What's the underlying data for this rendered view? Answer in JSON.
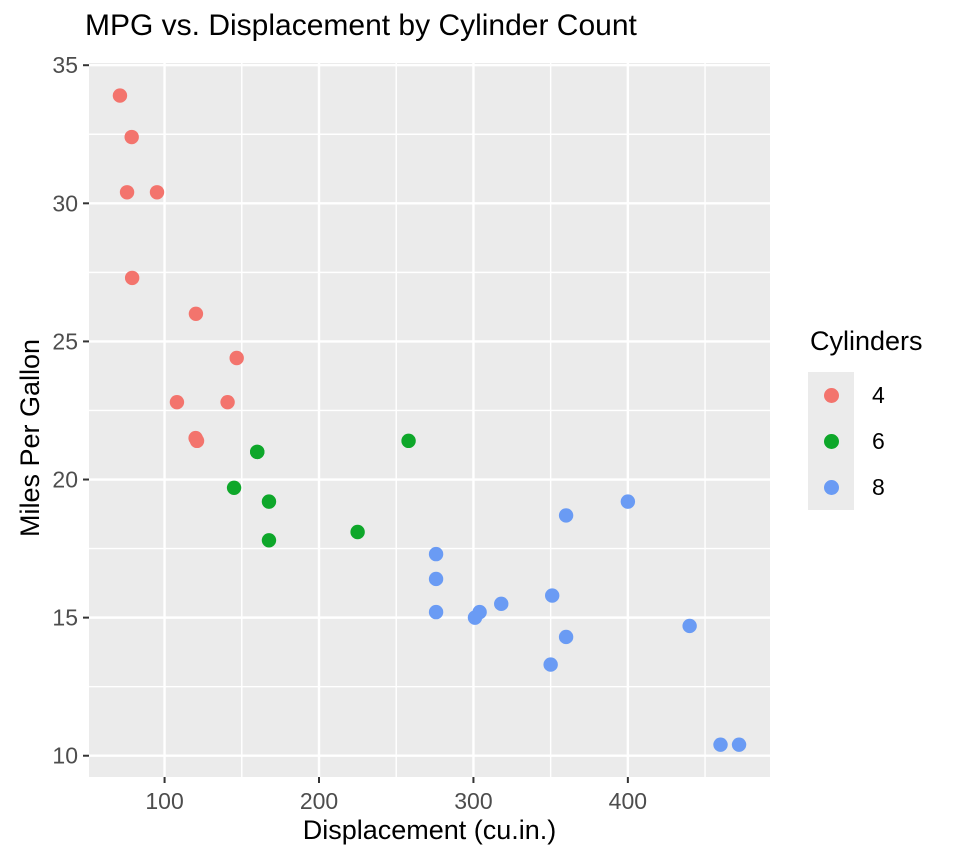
{
  "chart_data": {
    "type": "scatter",
    "title": "MPG vs. Displacement by Cylinder Count",
    "xlabel": "Displacement (cu.in.)",
    "ylabel": "Miles Per Gallon",
    "legend_title": "Cylinders",
    "legend_position": "right",
    "grid": true,
    "panel_bg": "#EBEBEB",
    "grid_color": "#FFFFFF",
    "tick_color": "#333333",
    "tick_label_color": "#4D4D4D",
    "xlim": [
      51.06,
      492.04
    ],
    "ylim": [
      9.23,
      35.08
    ],
    "x_ticks": [
      100,
      200,
      300,
      400
    ],
    "x_minor_ticks": [
      150,
      250,
      350,
      450
    ],
    "y_ticks": [
      10,
      15,
      20,
      25,
      30,
      35
    ],
    "y_minor_ticks": [
      12.5,
      17.5,
      22.5,
      27.5,
      32.5
    ],
    "series": [
      {
        "name": "4",
        "color": "#F3746D",
        "points": [
          [
            108,
            22.8
          ],
          [
            146.7,
            24.4
          ],
          [
            140.8,
            22.8
          ],
          [
            78.7,
            32.4
          ],
          [
            75.7,
            30.4
          ],
          [
            71.1,
            33.9
          ],
          [
            120.1,
            21.5
          ],
          [
            121,
            21.4
          ],
          [
            79,
            27.3
          ],
          [
            120.3,
            26.0
          ],
          [
            95.1,
            30.4
          ]
        ]
      },
      {
        "name": "6",
        "color": "#0EA72A",
        "points": [
          [
            160,
            21.0
          ],
          [
            160,
            21.0
          ],
          [
            258,
            21.4
          ],
          [
            225,
            18.1
          ],
          [
            167.6,
            19.2
          ],
          [
            167.6,
            17.8
          ],
          [
            145,
            19.7
          ]
        ]
      },
      {
        "name": "8",
        "color": "#6A9BF4",
        "points": [
          [
            360,
            18.7
          ],
          [
            360,
            14.3
          ],
          [
            275.8,
            16.4
          ],
          [
            275.8,
            17.3
          ],
          [
            275.8,
            15.2
          ],
          [
            472,
            10.4
          ],
          [
            460,
            10.4
          ],
          [
            440,
            14.7
          ],
          [
            318,
            15.5
          ],
          [
            304,
            15.2
          ],
          [
            350,
            13.3
          ],
          [
            400,
            19.2
          ],
          [
            351,
            15.8
          ],
          [
            301,
            15.0
          ]
        ]
      }
    ]
  }
}
